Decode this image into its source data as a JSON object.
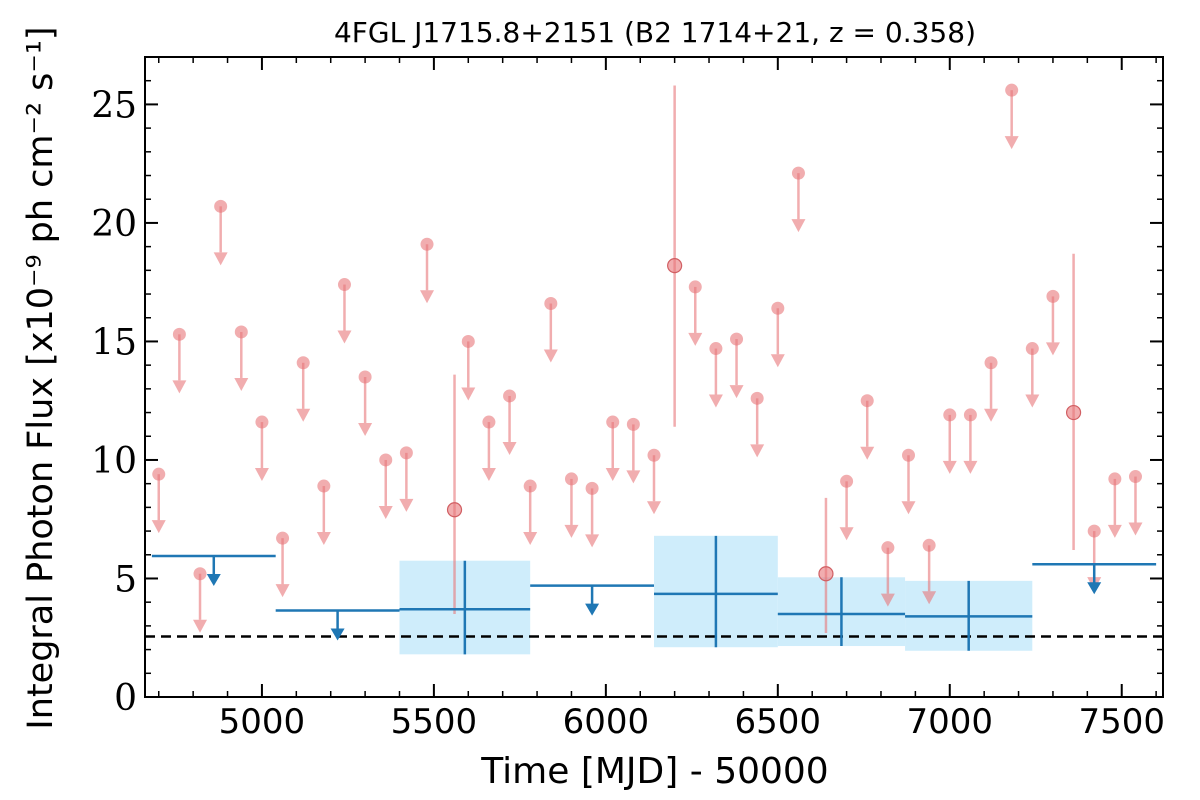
{
  "chart_data": {
    "type": "scatter",
    "title": "4FGL J1715.8+2151 (B2 1714+21, z = 0.358)",
    "xlabel": "Time [MJD] - 50000",
    "ylabel": "Integral Photon Flux [x10⁻⁹ ph cm⁻² s⁻¹]",
    "xlim": [
      4660,
      7620
    ],
    "ylim": [
      0,
      27
    ],
    "x_ticks": [
      5000,
      5500,
      6000,
      6500,
      7000,
      7500
    ],
    "y_ticks": [
      0,
      5,
      10,
      15,
      20,
      25
    ],
    "reference_line": {
      "y": 2.55,
      "style": "dashed",
      "color": "#000000"
    },
    "colors": {
      "short_bins": "#e8767a",
      "long_bins": "#1f77b4",
      "band_fill": "#cfedfb"
    },
    "series": [
      {
        "kind": "short_bin_upper_limits",
        "x": [
          4700,
          4760,
          4820,
          4880,
          4940,
          5000,
          5060,
          5120,
          5180,
          5240,
          5300,
          5360,
          5420,
          5480,
          5600,
          5660,
          5720,
          5780,
          5840,
          5900,
          5960,
          6020,
          6080,
          6140,
          6260,
          6320,
          6380,
          6440,
          6500,
          6560,
          6700,
          6760,
          6820,
          6880,
          6940,
          7000,
          7060,
          7120,
          7180,
          7240,
          7300,
          7420,
          7480,
          7540
        ],
        "y": [
          9.4,
          15.3,
          5.2,
          20.7,
          15.4,
          11.6,
          6.7,
          14.1,
          8.9,
          17.4,
          13.5,
          10.0,
          10.3,
          19.1,
          15.0,
          11.6,
          12.7,
          8.9,
          16.6,
          9.2,
          8.8,
          11.6,
          11.5,
          10.2,
          17.3,
          14.7,
          15.1,
          12.6,
          16.4,
          22.1,
          9.1,
          12.5,
          6.3,
          10.2,
          6.4,
          11.9,
          11.9,
          14.1,
          25.6,
          14.7,
          16.9,
          7.0,
          9.2,
          9.3
        ]
      },
      {
        "kind": "short_bin_detections",
        "x": [
          5560,
          6200,
          6640,
          7360
        ],
        "y": [
          7.9,
          18.2,
          5.2,
          12.0
        ],
        "y_low": [
          3.5,
          11.4,
          2.7,
          6.2
        ],
        "y_high": [
          13.6,
          25.8,
          8.4,
          18.7
        ]
      },
      {
        "kind": "long_bin_upper_limits",
        "x_start": [
          4680,
          5040,
          5780,
          7240
        ],
        "x_end": [
          5040,
          5400,
          6140,
          7600
        ],
        "y": [
          5.95,
          3.65,
          4.7,
          5.6
        ]
      },
      {
        "kind": "long_bin_detections",
        "x_start": [
          5400,
          6140,
          6500,
          6870
        ],
        "x_end": [
          5780,
          6500,
          6870,
          7240
        ],
        "y": [
          3.7,
          4.35,
          3.5,
          3.4
        ],
        "y_low": [
          1.8,
          2.1,
          2.15,
          1.95
        ],
        "y_high": [
          5.75,
          6.8,
          5.05,
          4.9
        ]
      }
    ]
  }
}
